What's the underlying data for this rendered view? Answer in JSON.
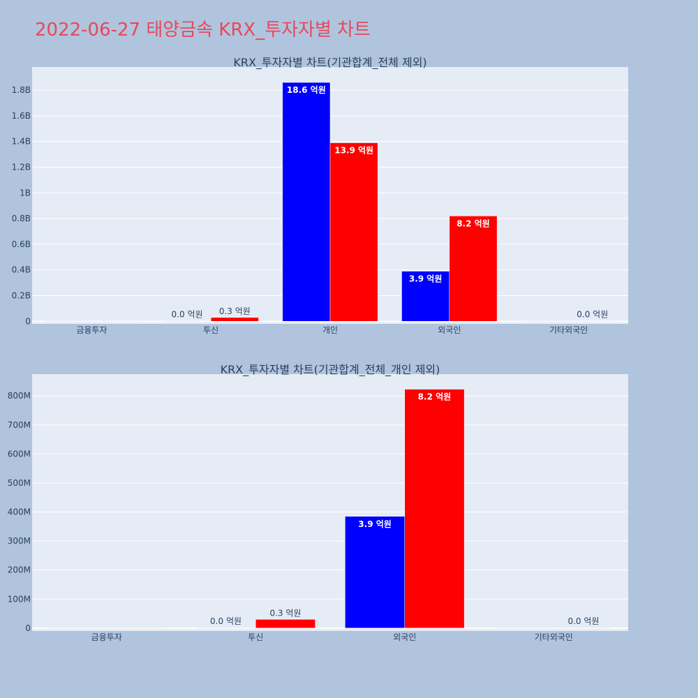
{
  "page": {
    "title": "2022-06-27 태양금속 KRX_투자자별 차트"
  },
  "colors": {
    "background": "#b0c4de",
    "plot_background": "#e5ecf6",
    "title": "#e8485a",
    "text": "#2a3f5f",
    "buy": "#0000ff",
    "sell": "#ff0000"
  },
  "chart_data": [
    {
      "type": "bar",
      "title": "KRX_투자자별 차트(기관합계_전체 제외)",
      "categories": [
        "금융투자",
        "투신",
        "개인",
        "외국인",
        "기타외국인"
      ],
      "series": [
        {
          "color": "#0000ff",
          "values": [
            0,
            0.003,
            1860000000,
            390000000,
            0
          ],
          "labels": [
            "",
            "0.0 억원",
            "18.6 억원",
            "3.9 억원",
            ""
          ]
        },
        {
          "color": "#ff0000",
          "values": [
            0,
            30000000,
            1390000000,
            820000000,
            0.003
          ],
          "labels": [
            "",
            "0.3 억원",
            "13.9 억원",
            "8.2 억원",
            "0.0 억원"
          ]
        }
      ],
      "ylim": [
        -20000000,
        1980000000
      ],
      "yticks": [
        0,
        200000000,
        400000000,
        600000000,
        800000000,
        1000000000,
        1200000000,
        1400000000,
        1600000000,
        1800000000
      ],
      "ytick_labels": [
        "0",
        "0.2B",
        "0.4B",
        "0.6B",
        "0.8B",
        "1B",
        "1.2B",
        "1.4B",
        "1.6B",
        "1.8B"
      ],
      "grid": true,
      "legend": "none"
    },
    {
      "type": "bar",
      "title": "KRX_투자자별 차트(기관합계_전체_개인 제외)",
      "categories": [
        "금융투자",
        "투신",
        "외국인",
        "기타외국인"
      ],
      "series": [
        {
          "color": "#0000ff",
          "values": [
            0,
            0.003,
            385000000,
            0
          ],
          "labels": [
            "",
            "0.0 억원",
            "3.9 억원",
            ""
          ]
        },
        {
          "color": "#ff0000",
          "values": [
            0,
            30000000,
            823000000,
            0.003
          ],
          "labels": [
            "",
            "0.3 억원",
            "8.2 억원",
            "0.0 억원"
          ]
        }
      ],
      "ylim": [
        -10000000,
        875000000
      ],
      "yticks": [
        0,
        100000000,
        200000000,
        300000000,
        400000000,
        500000000,
        600000000,
        700000000,
        800000000
      ],
      "ytick_labels": [
        "0",
        "100M",
        "200M",
        "300M",
        "400M",
        "500M",
        "600M",
        "700M",
        "800M"
      ],
      "grid": true,
      "legend": "none"
    }
  ]
}
